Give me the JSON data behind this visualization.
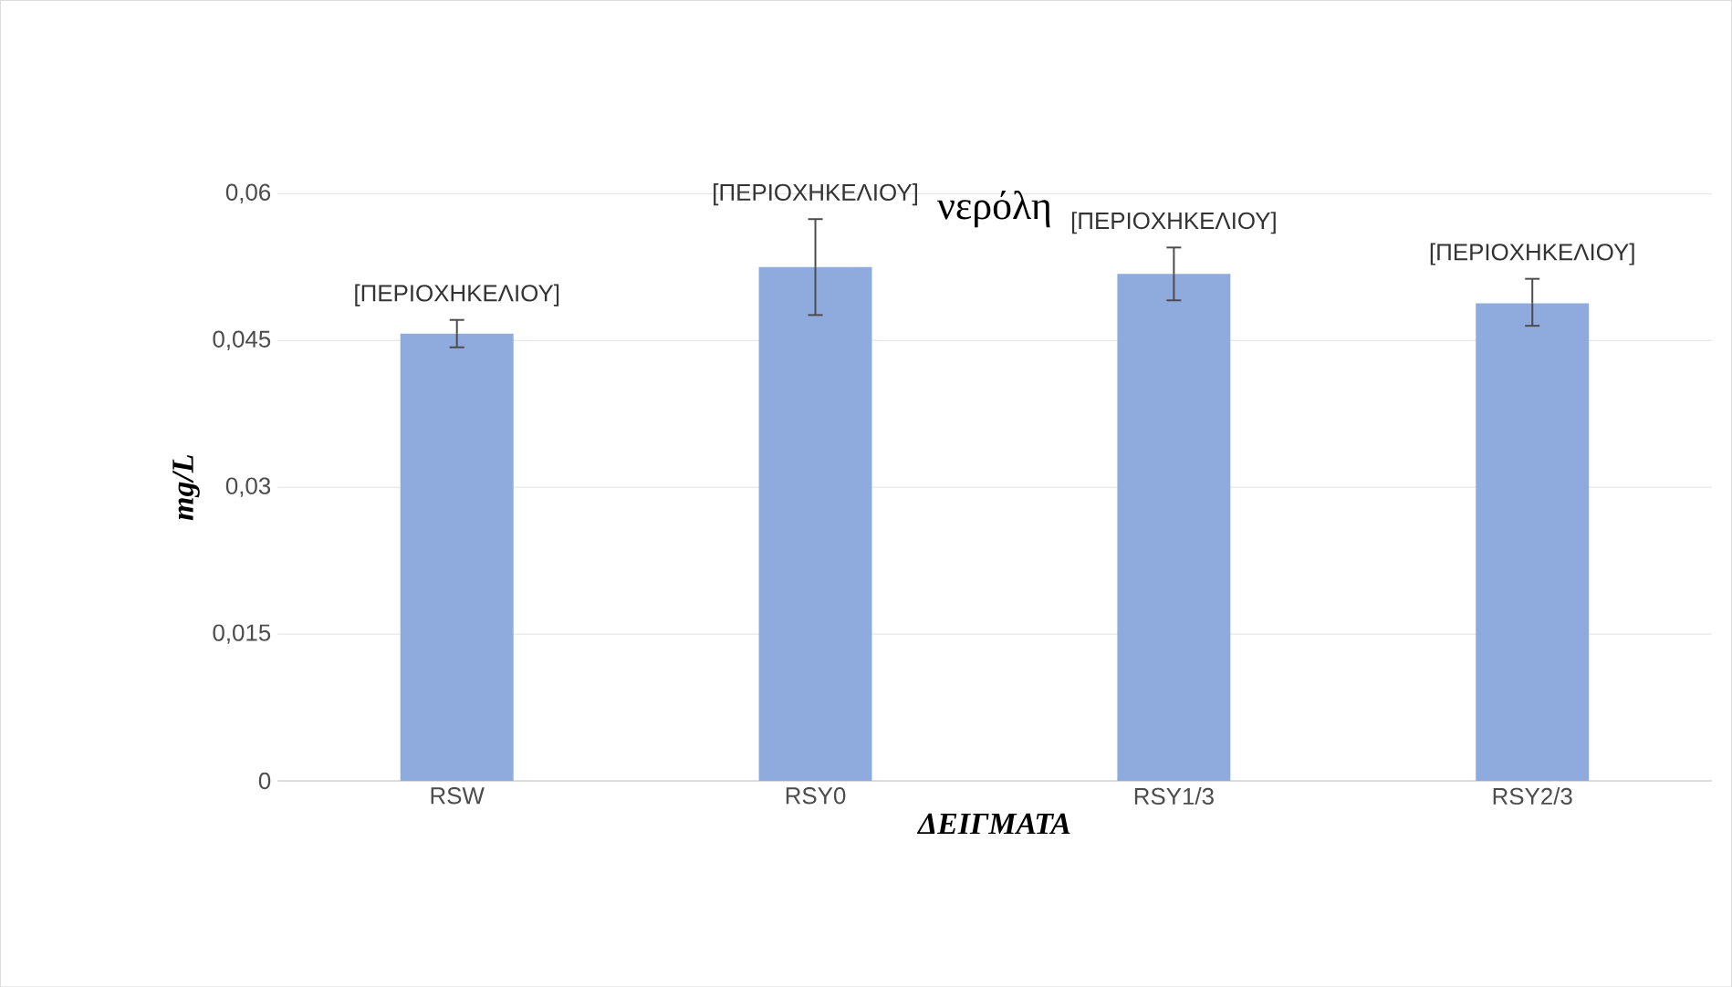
{
  "chart_data": {
    "type": "bar",
    "title": "νερόλη",
    "xlabel": "ΔΕΙΓΜΑΤΑ",
    "ylabel": "mg/L",
    "categories": [
      "RSW",
      "RSY0",
      "RSY1/3",
      "RSY2/3"
    ],
    "values": [
      0.0457,
      0.0525,
      0.0518,
      0.0488
    ],
    "errors": [
      [
        0.0443,
        0.0471
      ],
      [
        0.0476,
        0.0574
      ],
      [
        0.0491,
        0.0545
      ],
      [
        0.0465,
        0.0513
      ]
    ],
    "value_labels": [
      "[ΠΕΡΙΟΧΗΚΕΛΙΟΥ]",
      "[ΠΕΡΙΟΧΗΚΕΛΙΟΥ]",
      "[ΠΕΡΙΟΧΗΚΕΛΙΟΥ]",
      "[ΠΕΡΙΟΧΗΚΕΛΙΟΥ]"
    ],
    "color": "#8faadc",
    "ylim": [
      0,
      0.06
    ],
    "yticks": [
      {
        "value": 0,
        "label": "0"
      },
      {
        "value": 0.015,
        "label": "0,015"
      },
      {
        "value": 0.03,
        "label": "0,03"
      },
      {
        "value": 0.045,
        "label": "0,045"
      },
      {
        "value": 0.06,
        "label": "0,06"
      }
    ],
    "grid": "y"
  }
}
